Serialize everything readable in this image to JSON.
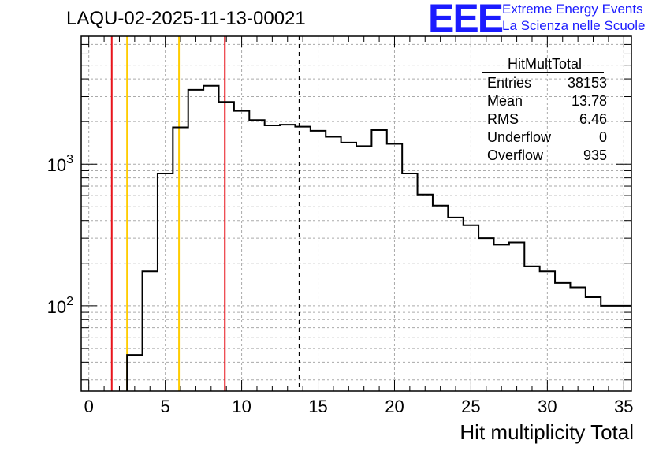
{
  "header": {
    "run_title": "LAQU-02-2025-11-13-00021",
    "logo_text": "EEE",
    "logo_line1": "Extreme Energy Events",
    "logo_line2": "La Scienza nelle Scuole"
  },
  "stats_box": {
    "title": "HitMultTotal",
    "rows": [
      {
        "label": "Entries",
        "value": "38153"
      },
      {
        "label": "Mean",
        "value": "13.78"
      },
      {
        "label": "RMS",
        "value": "6.46"
      },
      {
        "label": "Underflow",
        "value": "0"
      },
      {
        "label": "Overflow",
        "value": "935"
      }
    ]
  },
  "chart_data": {
    "type": "histogram",
    "title": "LAQU-02-2025-11-13-00021",
    "xlabel": "Hit multiplicity Total",
    "ylabel": "",
    "y_scale": "log",
    "xlim": [
      -0.5,
      35.5
    ],
    "ylim": [
      25,
      8000
    ],
    "x_ticks": [
      0,
      5,
      10,
      15,
      20,
      25,
      30,
      35
    ],
    "y_tick_labels": [
      {
        "value": 100,
        "base": "10",
        "exp": "2"
      },
      {
        "value": 1000,
        "base": "10",
        "exp": "3"
      }
    ],
    "grid": true,
    "bin_width": 1,
    "bin_low_edges": [
      2.5,
      3.5,
      4.5,
      5.5,
      6.5,
      7.5,
      8.5,
      9.5,
      10.5,
      11.5,
      12.5,
      13.5,
      14.5,
      15.5,
      16.5,
      17.5,
      18.5,
      19.5,
      20.5,
      21.5,
      22.5,
      23.5,
      24.5,
      25.5,
      26.5,
      27.5,
      28.5,
      29.5,
      30.5,
      31.5,
      32.5,
      33.5,
      34.5
    ],
    "values": [
      45,
      175,
      860,
      1820,
      3350,
      3580,
      2750,
      2380,
      2050,
      1880,
      1900,
      1840,
      1720,
      1560,
      1420,
      1340,
      1740,
      1390,
      860,
      610,
      510,
      420,
      370,
      300,
      270,
      280,
      190,
      175,
      145,
      135,
      115,
      100,
      100
    ],
    "vertical_markers": [
      {
        "x": 1.5,
        "color": "#e8141c",
        "style": "solid"
      },
      {
        "x": 2.5,
        "color": "#ffcc00",
        "style": "solid"
      },
      {
        "x": 5.9,
        "color": "#ffcc00",
        "style": "solid"
      },
      {
        "x": 8.9,
        "color": "#e8141c",
        "style": "solid"
      },
      {
        "x": 13.78,
        "color": "#000000",
        "style": "dashed"
      }
    ],
    "line_color": "#000000"
  }
}
